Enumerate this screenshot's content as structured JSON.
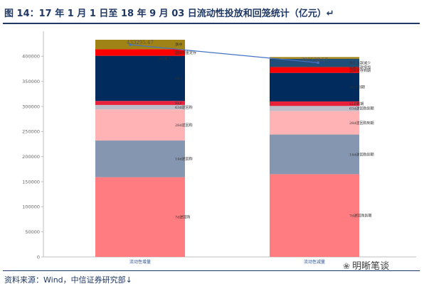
{
  "title": "图 14：17 年 1 月 1 日至 18 年 9 月 03 日流动性投放和回笼统计（亿元）↵",
  "source": "资料来源：Wind，中信证券研究部↓",
  "watermark": "明晰笔谈",
  "watermark_icon": "wechat-icon",
  "chart_data": {
    "type": "bar",
    "stacked": true,
    "ylim": [
      0,
      450000
    ],
    "yticks": [
      0,
      50000,
      100000,
      150000,
      200000,
      250000,
      300000,
      350000,
      400000
    ],
    "grid": false,
    "categories": [
      "流动性增量",
      "流动性减量"
    ],
    "totals": [
      "433295.47",
      "398538.57"
    ],
    "series": [
      {
        "color": "#ff7c80",
        "values": [
          159000,
          165000
        ],
        "labels": [
          "7d逆回购",
          "7d逆回购到期"
        ]
      },
      {
        "color": "#8496b0",
        "values": [
          73000,
          79000
        ],
        "labels": [
          "14d逆回购",
          "14d逆回购到期"
        ]
      },
      {
        "color": "#ffb3b5",
        "values": [
          62000,
          47000
        ],
        "labels": [
          "28d逆回购",
          "28d逆回购到期"
        ]
      },
      {
        "color": "#bdbdc9",
        "values": [
          9000,
          10000
        ],
        "labels": [
          "63d逆回购",
          "63d逆回购到期"
        ]
      },
      {
        "color": "#e8203a",
        "values": [
          8000,
          9000
        ],
        "labels": [
          "SLF",
          "SLF到期"
        ]
      },
      {
        "color": "#002b5c",
        "values": [
          90000,
          57000
        ],
        "labels": [
          "MLF",
          "MLF到期"
        ]
      },
      {
        "color": "#ff0000",
        "values": [
          13000,
          10000
        ],
        "labels": [
          "国库现金定存",
          "国库定存到期"
        ]
      },
      {
        "color": "#c00000",
        "values": [
          0,
          2000
        ],
        "labels": [
          "",
          "财政存款增加"
        ]
      },
      {
        "color": "#1f4e79",
        "values": [
          0,
          16000
        ],
        "labels": [
          "",
          "外汇占款减少"
        ]
      },
      {
        "color": "#a08316",
        "values": [
          19000,
          3500
        ],
        "labels": [
          "净冲",
          ""
        ]
      }
    ],
    "annotations": [
      "38(减少)"
    ]
  }
}
